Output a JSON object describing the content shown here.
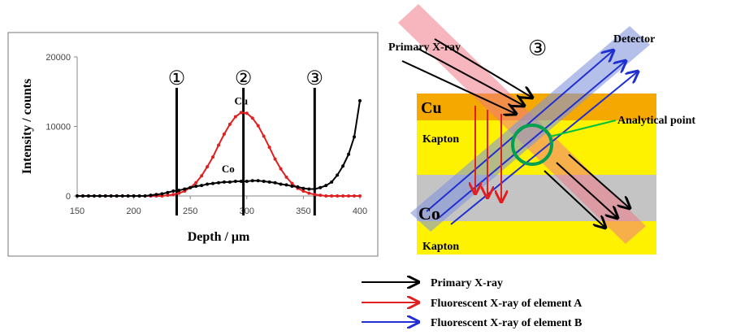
{
  "chart_data": {
    "type": "line",
    "x_label": "Depth / μm",
    "y_label": "Intensity / counts",
    "x": [
      150,
      155,
      160,
      165,
      170,
      175,
      180,
      185,
      190,
      195,
      200,
      205,
      210,
      215,
      220,
      225,
      230,
      235,
      240,
      245,
      250,
      255,
      260,
      265,
      270,
      275,
      280,
      285,
      290,
      295,
      300,
      305,
      310,
      315,
      320,
      325,
      330,
      335,
      340,
      345,
      350,
      355,
      360,
      365,
      370,
      375,
      380,
      385,
      390,
      395,
      400
    ],
    "series": [
      {
        "name": "Cu",
        "color": "#e02020",
        "values": [
          0,
          0,
          0,
          0,
          0,
          0,
          0,
          0,
          0,
          0,
          0,
          0,
          0,
          0,
          0,
          0,
          100,
          200,
          400,
          700,
          1200,
          1900,
          2900,
          4200,
          5600,
          7300,
          8900,
          10300,
          11400,
          12000,
          11900,
          11200,
          10100,
          8600,
          7000,
          5300,
          3900,
          2700,
          1800,
          1100,
          700,
          400,
          200,
          100,
          0,
          0,
          0,
          0,
          0,
          0,
          0
        ]
      },
      {
        "name": "Co",
        "color": "#000000",
        "values": [
          0,
          0,
          0,
          0,
          0,
          0,
          0,
          0,
          0,
          0,
          0,
          0,
          0,
          100,
          200,
          300,
          500,
          700,
          800,
          1000,
          1200,
          1400,
          1500,
          1700,
          1800,
          1900,
          2000,
          2000,
          2100,
          2100,
          2100,
          2200,
          2200,
          2100,
          2000,
          1900,
          1700,
          1600,
          1400,
          1300,
          1100,
          1000,
          1000,
          1200,
          1500,
          2000,
          3000,
          4300,
          6000,
          8500,
          13700
        ]
      }
    ],
    "xlim": [
      150,
      400
    ],
    "xticks": [
      150,
      200,
      250,
      300,
      350,
      400
    ],
    "ylim": [
      0,
      20000
    ],
    "yticks": [
      0,
      10000,
      20000
    ],
    "vlines": [
      {
        "x": 238,
        "label": "①"
      },
      {
        "x": 297,
        "label": "②"
      },
      {
        "x": 360,
        "label": "③"
      }
    ]
  },
  "diagram": {
    "beam_label": "Primary X-ray",
    "position_label": "③",
    "detector_label": "Detector",
    "layers": [
      "Cu",
      "Kapton",
      "Co",
      "Kapton"
    ],
    "point_label": "Analytical point",
    "legend": [
      "Primary X-ray",
      "Fluorescent X-ray of element A",
      "Fluorescent X-ray of element B"
    ]
  }
}
